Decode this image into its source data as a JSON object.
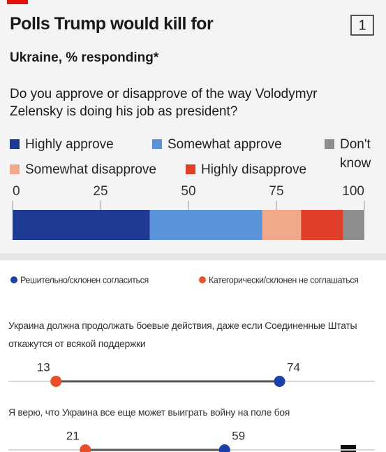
{
  "chart_data": [
    {
      "type": "bar",
      "orientation": "horizontal",
      "stacked": true,
      "title": "Polls Trump would kill for",
      "badge": "1",
      "subtitle": "Ukraine, % responding*",
      "question": "Do you approve or disapprove of the way Volodymyr Zelensky is doing his job as president?",
      "xlim": [
        0,
        100
      ],
      "xticks": [
        0,
        25,
        50,
        75,
        100
      ],
      "series": [
        {
          "name": "Highly approve",
          "color": "#1f3a93",
          "values": [
            39
          ]
        },
        {
          "name": "Somewhat approve",
          "color": "#5b93d8",
          "values": [
            32
          ]
        },
        {
          "name": "Somewhat disapprove",
          "color": "#f2a98b",
          "values": [
            11
          ]
        },
        {
          "name": "Highly disapprove",
          "color": "#e0402a",
          "values": [
            12
          ]
        },
        {
          "name": "Don't know",
          "color": "#8e8e8e",
          "values": [
            6
          ]
        }
      ]
    },
    {
      "type": "dumbbell",
      "xlim": [
        0,
        100
      ],
      "categories": [
        "Украина должна продолжать боевые действия, даже если Соединенные Штаты откажутся от всякой поддержки",
        "Я верю, что Украина все еще может выиграть войну на поле боя"
      ],
      "series": [
        {
          "name": "Решительно/склонен согласиться",
          "color": "#1c3fa8",
          "values": [
            74,
            59
          ]
        },
        {
          "name": "Категорически/склонен не соглашаться",
          "color": "#e8502a",
          "values": [
            13,
            21
          ]
        }
      ]
    }
  ]
}
